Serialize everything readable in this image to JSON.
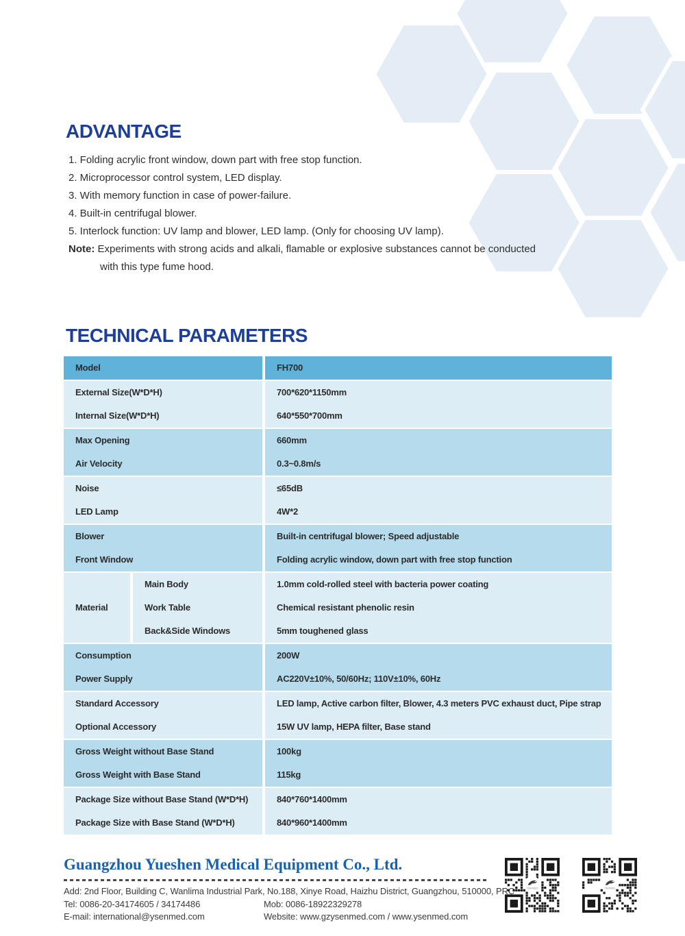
{
  "colors": {
    "heading_blue": "#1e3f99",
    "company_blue": "#1b62ae",
    "table_header_blue": "#5fb2d9",
    "row_medium_blue": "#b5dbec",
    "row_light_blue": "#dcedf6",
    "hexagon_fill": "#e4ecf5",
    "body_text": "#2e2e2e"
  },
  "advantage": {
    "title": "ADVANTAGE",
    "items": [
      "1. Folding acrylic front window, down part with free stop function.",
      "2. Microprocessor control system, LED display.",
      "3. With memory function in case of power-failure.",
      "4. Built-in centrifugal blower.",
      "5. Interlock function: UV lamp and blower, LED lamp. (Only for choosing UV lamp)."
    ],
    "note_label": "Note:",
    "note_text": " Experiments with strong acids and alkali, flamable or explosive substances cannot be conducted",
    "note_text2": "with this type fume hood."
  },
  "technical": {
    "title": "TECHNICAL PARAMETERS",
    "table": {
      "header_row": {
        "label": "Model",
        "value": "FH700"
      },
      "groups": [
        {
          "tone": "light",
          "rows": [
            {
              "label": "External Size(W*D*H)",
              "value": "700*620*1150mm"
            },
            {
              "label": "Internal Size(W*D*H)",
              "value": "640*550*700mm"
            }
          ]
        },
        {
          "tone": "medium",
          "rows": [
            {
              "label": "Max Opening",
              "value": "660mm"
            },
            {
              "label": "Air Velocity",
              "value": "0.3~0.8m/s"
            }
          ]
        },
        {
          "tone": "light",
          "rows": [
            {
              "label": "Noise",
              "value": "≤65dB"
            },
            {
              "label": "LED Lamp",
              "value": "4W*2"
            }
          ]
        },
        {
          "tone": "medium",
          "rows": [
            {
              "label": "Blower",
              "value": "Built-in centrifugal blower; Speed adjustable"
            },
            {
              "label": "Front Window",
              "value": "Folding acrylic window, down part with free stop function"
            }
          ]
        },
        {
          "tone": "light",
          "span_label": "Material",
          "rows": [
            {
              "label": "Main Body",
              "value": "1.0mm cold-rolled steel with bacteria power coating"
            },
            {
              "label": "Work Table",
              "value": "Chemical resistant phenolic resin"
            },
            {
              "label": "Back&Side Windows",
              "value": "5mm toughened glass"
            }
          ]
        },
        {
          "tone": "medium",
          "rows": [
            {
              "label": "Consumption",
              "value": "200W"
            },
            {
              "label": "Power Supply",
              "value": "AC220V±10%, 50/60Hz; 110V±10%, 60Hz"
            }
          ]
        },
        {
          "tone": "light",
          "rows": [
            {
              "label": "Standard Accessory",
              "value": "LED lamp, Active carbon filter, Blower, 4.3 meters PVC exhaust duct, Pipe strap"
            },
            {
              "label": "Optional Accessory",
              "value": "15W UV lamp, HEPA filter, Base stand"
            }
          ]
        },
        {
          "tone": "medium",
          "rows": [
            {
              "label": "Gross Weight without Base Stand",
              "value": "100kg"
            },
            {
              "label": "Gross Weight with Base Stand",
              "value": "115kg"
            }
          ]
        },
        {
          "tone": "light",
          "rows": [
            {
              "label": "Package Size without Base Stand (W*D*H)",
              "value": "840*760*1400mm"
            },
            {
              "label": "Package Size with Base Stand (W*D*H)",
              "value": "840*960*1400mm"
            }
          ]
        }
      ]
    }
  },
  "footer": {
    "company": "Guangzhou Yueshen Medical Equipment Co., Ltd.",
    "address": "Add: 2nd Floor, Building C, Wanlima Industrial Park, No.188, Xinye Road, Haizhu District, Guangzhou, 510000, PRC",
    "tel": "Tel: 0086-20-34174605 / 34174486",
    "mob": "Mob: 0086-18922329278",
    "email": "E-mail: international@ysenmed.com",
    "website": "Website: www.gzysenmed.com / www.ysenmed.com",
    "qr_logo_text": "YSENMED"
  }
}
